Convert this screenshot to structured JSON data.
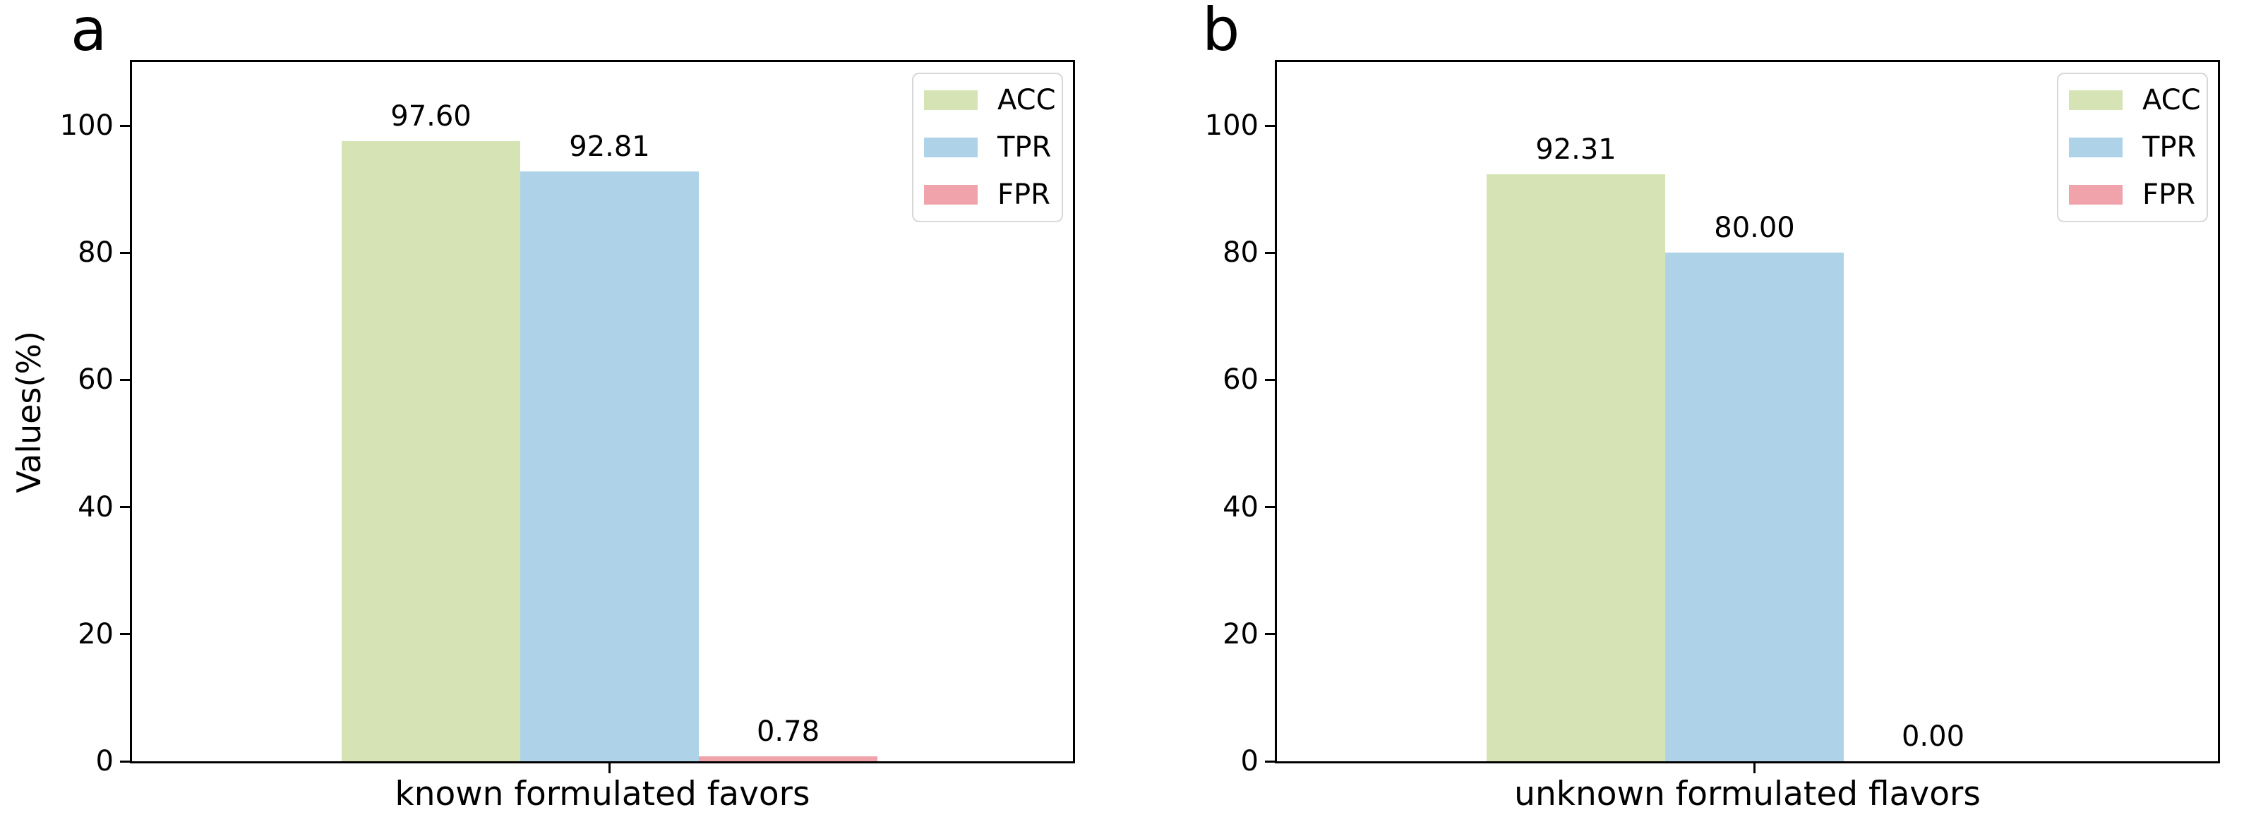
{
  "figure": {
    "background": "#ffffff",
    "text_color": "#000000",
    "spine_color": "#000000",
    "legend_border_color": "#d8d8d8"
  },
  "chart_data": [
    {
      "type": "bar",
      "panel_label": "a",
      "title": "",
      "xlabel": "known formulated favors",
      "ylabel": "Values(%)",
      "categories": [
        "known formulated favors"
      ],
      "series": [
        {
          "name": "ACC",
          "color": "#d6e4b5",
          "values": [
            97.6
          ],
          "label": "97.60"
        },
        {
          "name": "TPR",
          "color": "#aed2e8",
          "values": [
            92.81
          ],
          "label": "92.81"
        },
        {
          "name": "FPR",
          "color": "#f0a3ab",
          "values": [
            0.78
          ],
          "label": "0.78"
        }
      ],
      "ylim": [
        0,
        110
      ],
      "ytick_values": [
        0,
        20,
        40,
        60,
        80,
        100
      ],
      "yticks": [
        "0",
        "20",
        "40",
        "60",
        "80",
        "100"
      ],
      "grid": false,
      "legend_position": "top-right"
    },
    {
      "type": "bar",
      "panel_label": "b",
      "title": "",
      "xlabel": "unknown formulated flavors",
      "ylabel": "",
      "categories": [
        "unknown formulated flavors"
      ],
      "series": [
        {
          "name": "ACC",
          "color": "#d6e4b5",
          "values": [
            92.31
          ],
          "label": "92.31"
        },
        {
          "name": "TPR",
          "color": "#aed2e8",
          "values": [
            80.0
          ],
          "label": "80.00"
        },
        {
          "name": "FPR",
          "color": "#f0a3ab",
          "values": [
            0.0
          ],
          "label": "0.00"
        }
      ],
      "ylim": [
        0,
        110
      ],
      "ytick_values": [
        0,
        20,
        40,
        60,
        80,
        100
      ],
      "yticks": [
        "0",
        "20",
        "40",
        "60",
        "80",
        "100"
      ],
      "grid": false,
      "legend_position": "top-right"
    }
  ]
}
